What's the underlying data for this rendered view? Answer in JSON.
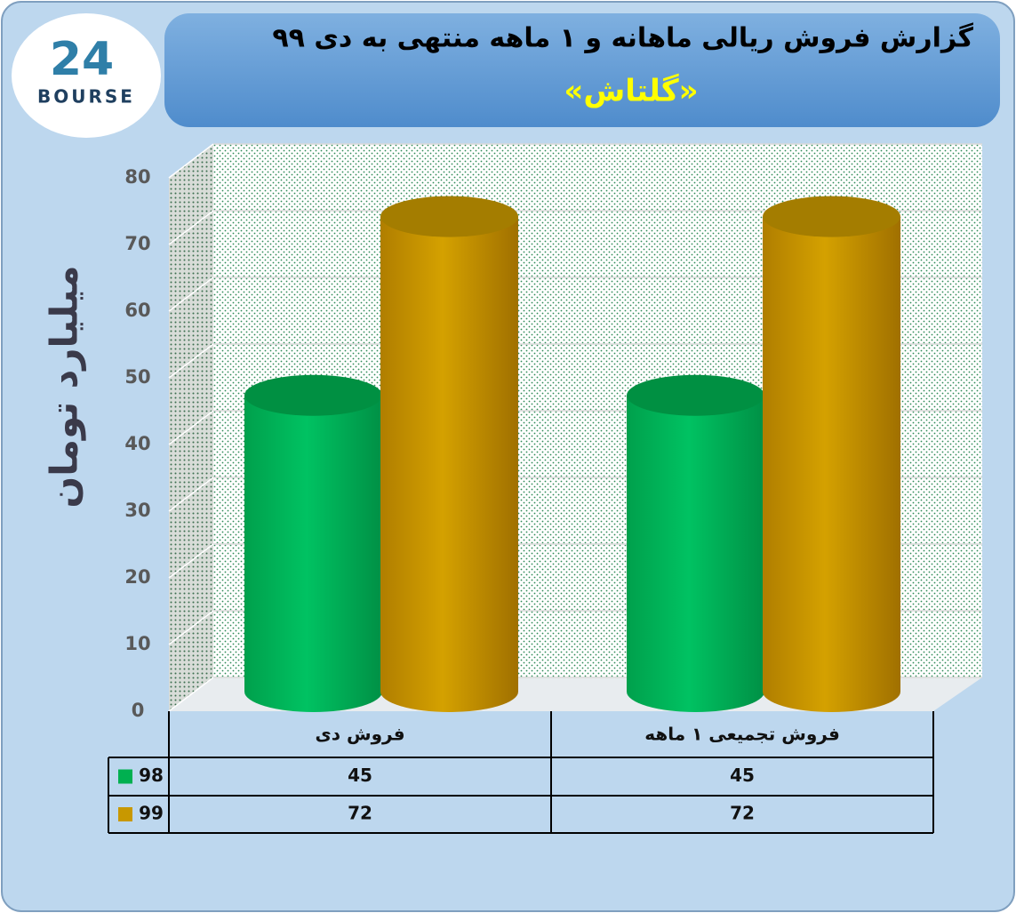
{
  "logo": {
    "number": "24",
    "name": "BOURSE"
  },
  "chart_data": {
    "type": "cylinder-bar",
    "title": "گزارش فروش ریالی ماهانه و ۱ ماهه منتهی به دی ۹۹",
    "subtitle": "«گلتاش»",
    "y_label": "میلیارد تومان",
    "categories": [
      "فروش دی",
      "فروش تجمیعی ۱ ماهه"
    ],
    "series": [
      {
        "name": "98",
        "color": "#00b050",
        "values": [
          45,
          45
        ]
      },
      {
        "name": "99",
        "color": "#c89800",
        "values": [
          72,
          72
        ]
      }
    ],
    "ylim": [
      0,
      80
    ],
    "yticks": [
      0,
      10,
      20,
      30,
      40,
      50,
      60,
      70,
      80
    ],
    "grid": true,
    "data_table": true
  }
}
